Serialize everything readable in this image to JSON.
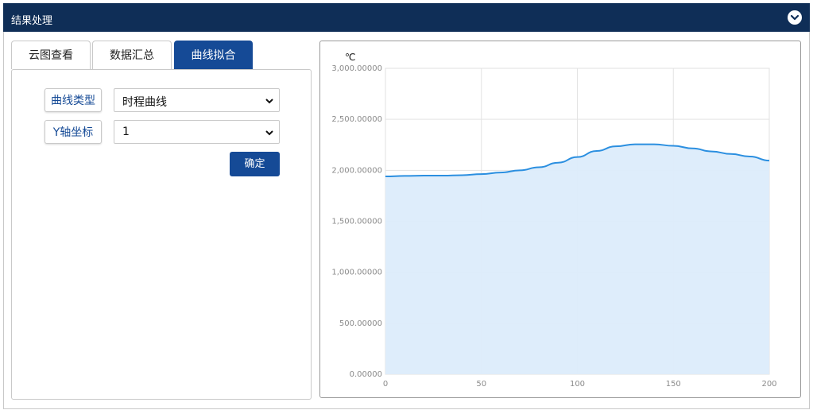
{
  "header": {
    "title": "结果处理",
    "collapse_icon": "chevron-down-icon"
  },
  "tabs": [
    {
      "label": "云图查看",
      "active": false
    },
    {
      "label": "数据汇总",
      "active": false
    },
    {
      "label": "曲线拟合",
      "active": true
    }
  ],
  "form": {
    "curve_type_label": "曲线类型",
    "curve_type_value": "时程曲线",
    "y_axis_label": "Y轴坐标",
    "y_axis_value": "1",
    "confirm_label": "确定"
  },
  "colors": {
    "accent": "#154a96",
    "header": "#0f2e57",
    "line": "#2b8fe0",
    "fill": "#dcecfb"
  },
  "chart_data": {
    "type": "area",
    "unit_label": "℃",
    "xlim": [
      0,
      200
    ],
    "ylim": [
      0,
      3000
    ],
    "x_ticks": [
      0,
      50,
      100,
      150,
      200
    ],
    "x_tick_labels": [
      "0",
      "50",
      "100",
      "150",
      "200"
    ],
    "y_ticks": [
      0,
      500,
      1000,
      1500,
      2000,
      2500,
      3000
    ],
    "y_tick_labels": [
      "0.00000",
      "500.00000",
      "1,000.00000",
      "1,500.00000",
      "2,000.00000",
      "2,500.00000",
      "3,000.00000"
    ],
    "grid": true,
    "x": [
      0,
      10,
      20,
      30,
      40,
      50,
      60,
      70,
      80,
      90,
      100,
      110,
      120,
      130,
      140,
      150,
      160,
      170,
      180,
      190,
      200
    ],
    "y": [
      1940,
      1945,
      1948,
      1948,
      1952,
      1963,
      1978,
      2000,
      2030,
      2075,
      2130,
      2190,
      2235,
      2255,
      2255,
      2240,
      2215,
      2185,
      2160,
      2135,
      2095
    ]
  }
}
